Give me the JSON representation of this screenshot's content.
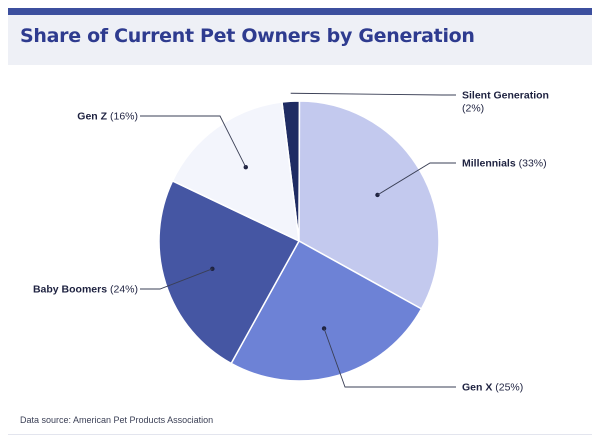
{
  "chart_data": {
    "type": "pie",
    "title": "Share of Current Pet Owners by Generation",
    "slices": [
      {
        "label": "Silent Generation",
        "value": 2,
        "value_text": "(2%)",
        "color": "#1f2c63"
      },
      {
        "label": "Millennials",
        "value": 33,
        "value_text": "(33%)",
        "color": "#c3c9ee"
      },
      {
        "label": "Gen X",
        "value": 25,
        "value_text": "(25%)",
        "color": "#6d82d6"
      },
      {
        "label": "Baby Boomers",
        "value": 24,
        "value_text": "(24%)",
        "color": "#4556a3"
      },
      {
        "label": "Gen Z",
        "value": 16,
        "value_text": "(16%)",
        "color": "#f3f5fc"
      }
    ],
    "source": "Data source: American Pet Products Association"
  }
}
